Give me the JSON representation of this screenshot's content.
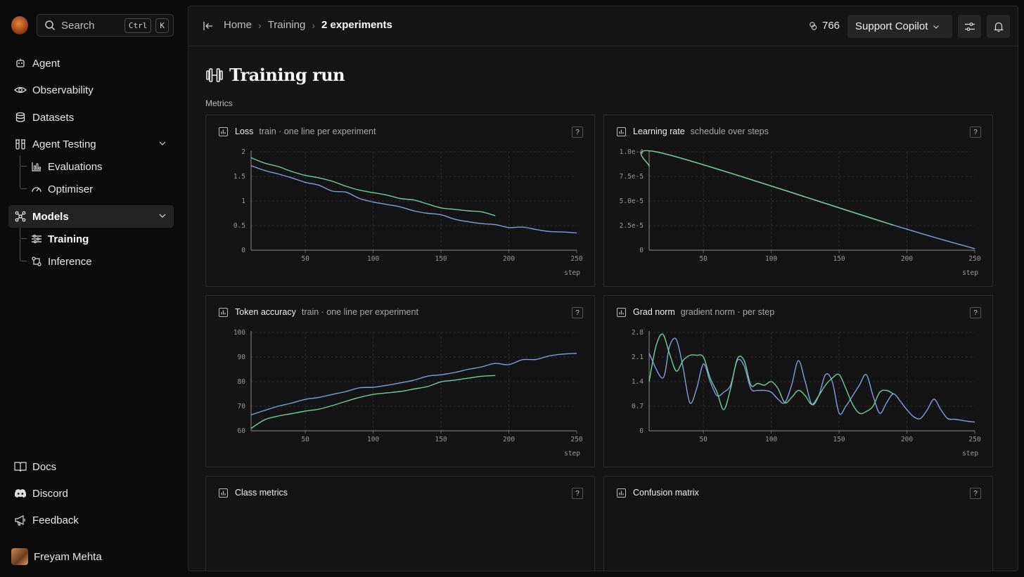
{
  "sidebar": {
    "search": {
      "placeholder": "Search",
      "shortcut_keys": [
        "Ctrl",
        "K"
      ]
    },
    "nav": [
      {
        "label": "Agent",
        "icon": "bot-icon"
      },
      {
        "label": "Observability",
        "icon": "eye-icon"
      },
      {
        "label": "Datasets",
        "icon": "database-icon"
      },
      {
        "label": "Agent Testing",
        "icon": "flask-icon",
        "expanded": true,
        "children": [
          {
            "label": "Evaluations",
            "icon": "chart-icon"
          },
          {
            "label": "Optimiser",
            "icon": "gauge-icon"
          }
        ]
      },
      {
        "label": "Models",
        "icon": "models-icon",
        "expanded": true,
        "active": true,
        "children": [
          {
            "label": "Training",
            "icon": "sliders-icon",
            "active": true
          },
          {
            "label": "Inference",
            "icon": "inference-icon"
          }
        ]
      }
    ],
    "footer_links": [
      {
        "label": "Docs",
        "icon": "book-icon"
      },
      {
        "label": "Discord",
        "icon": "discord-icon"
      },
      {
        "label": "Feedback",
        "icon": "megaphone-icon"
      }
    ],
    "user": {
      "name": "Freyam Mehta"
    }
  },
  "topbar": {
    "breadcrumbs": [
      "Home",
      "Training",
      "2 experiments"
    ],
    "credits": "766",
    "copilot_label": "Support Copilot"
  },
  "page": {
    "title": "Training run",
    "section_label": "Metrics",
    "help_glyph": "?"
  },
  "colors": {
    "series_a": "#7f9fdc",
    "series_b": "#6fcf97",
    "background": "#151515"
  },
  "cards": {
    "loss": {
      "title": "Loss",
      "subtitle": "train · one line per experiment"
    },
    "lr": {
      "title": "Learning rate",
      "subtitle": "schedule over steps"
    },
    "acc": {
      "title": "Token accuracy",
      "subtitle": "train · one line per experiment"
    },
    "grad": {
      "title": "Grad norm",
      "subtitle": "gradient norm · per step"
    },
    "class_metrics": {
      "title": "Class metrics"
    },
    "confusion": {
      "title": "Confusion matrix"
    }
  },
  "chart_data": [
    {
      "id": "loss",
      "type": "line",
      "title": "Loss",
      "subtitle": "train · one line per experiment",
      "xlabel": "step",
      "ylabel": "",
      "xlim": [
        10,
        250
      ],
      "ylim": [
        0,
        2
      ],
      "xticks": [
        50,
        100,
        150,
        200,
        250
      ],
      "yticks": [
        0,
        0.5,
        1,
        1.5,
        2
      ],
      "ytick_labels": [
        "0",
        "0.5",
        "1",
        "1.5",
        "2"
      ],
      "grid": true,
      "series": [
        {
          "color": "#7f9fdc",
          "x": [
            10,
            20,
            30,
            40,
            50,
            60,
            70,
            80,
            90,
            100,
            110,
            120,
            130,
            140,
            150,
            160,
            170,
            180,
            190,
            200,
            210,
            220,
            230,
            240,
            250
          ],
          "y": [
            1.72,
            1.62,
            1.55,
            1.47,
            1.38,
            1.32,
            1.2,
            1.18,
            1.05,
            0.98,
            0.93,
            0.88,
            0.8,
            0.75,
            0.72,
            0.63,
            0.58,
            0.54,
            0.52,
            0.46,
            0.47,
            0.42,
            0.38,
            0.37,
            0.35
          ]
        },
        {
          "color": "#6fcf97",
          "x": [
            10,
            20,
            30,
            40,
            50,
            60,
            70,
            80,
            90,
            100,
            110,
            120,
            130,
            140,
            150,
            160,
            170,
            180,
            190
          ],
          "y": [
            1.88,
            1.77,
            1.7,
            1.6,
            1.52,
            1.47,
            1.4,
            1.3,
            1.22,
            1.17,
            1.12,
            1.05,
            1.02,
            0.94,
            0.86,
            0.83,
            0.8,
            0.78,
            0.7
          ]
        }
      ]
    },
    {
      "id": "lr",
      "type": "line",
      "title": "Learning rate",
      "subtitle": "schedule over steps",
      "xlabel": "step",
      "ylabel": "",
      "xlim": [
        10,
        250
      ],
      "ylim": [
        0,
        0.0001
      ],
      "xticks": [
        50,
        100,
        150,
        200,
        250
      ],
      "yticks": [
        0,
        2.5e-05,
        5e-05,
        7.5e-05,
        0.0001
      ],
      "ytick_labels": [
        "0",
        "2.5e-5",
        "5.0e-5",
        "7.5e-5",
        "1.0e-4"
      ],
      "grid": true,
      "series": [
        {
          "color": "#7f9fdc",
          "x": [
            10,
            20,
            190,
            250
          ],
          "y": [
            8.5e-05,
            9.85e-05,
            2.55e-05,
            1.5e-06
          ]
        },
        {
          "color": "#6fcf97",
          "x": [
            10,
            20,
            190
          ],
          "y": [
            8.5e-05,
            9.85e-05,
            2.55e-05
          ]
        }
      ]
    },
    {
      "id": "acc",
      "type": "line",
      "title": "Token accuracy",
      "subtitle": "train · one line per experiment",
      "xlabel": "step",
      "ylabel": "",
      "xlim": [
        10,
        250
      ],
      "ylim": [
        60,
        100
      ],
      "xticks": [
        50,
        100,
        150,
        200,
        250
      ],
      "yticks": [
        60,
        70,
        80,
        90,
        100
      ],
      "ytick_labels": [
        "60",
        "70",
        "80",
        "90",
        "100"
      ],
      "grid": true,
      "series": [
        {
          "color": "#7f9fdc",
          "x": [
            10,
            20,
            30,
            40,
            50,
            60,
            70,
            80,
            90,
            100,
            110,
            120,
            130,
            140,
            150,
            160,
            170,
            180,
            190,
            200,
            210,
            220,
            230,
            240,
            250
          ],
          "y": [
            66.5,
            68.3,
            70,
            71.3,
            72.8,
            73.6,
            74.8,
            76,
            77.5,
            77.7,
            78.5,
            79.5,
            80.6,
            82.2,
            82.8,
            83.7,
            85,
            86,
            87.4,
            86.9,
            88.9,
            89,
            90.5,
            91.2,
            91.5
          ]
        },
        {
          "color": "#6fcf97",
          "x": [
            10,
            20,
            30,
            40,
            50,
            60,
            70,
            80,
            90,
            100,
            110,
            120,
            130,
            140,
            150,
            160,
            170,
            180,
            190
          ],
          "y": [
            61,
            64.5,
            66,
            67,
            68,
            68.8,
            70.3,
            72,
            73.6,
            74.8,
            75.4,
            76,
            77,
            78,
            79.9,
            80.6,
            81.4,
            82.2,
            82.5
          ]
        }
      ]
    },
    {
      "id": "grad",
      "type": "line",
      "title": "Grad norm",
      "subtitle": "gradient norm · per step",
      "xlabel": "step",
      "ylabel": "",
      "xlim": [
        10,
        250
      ],
      "ylim": [
        0,
        2.8
      ],
      "xticks": [
        50,
        100,
        150,
        200,
        250
      ],
      "yticks": [
        0,
        0.7,
        1.4,
        2.1,
        2.8
      ],
      "ytick_labels": [
        "0",
        "0.7",
        "1.4",
        "2.1",
        "2.8"
      ],
      "grid": true,
      "series": [
        {
          "color": "#7f9fdc",
          "x": [
            10,
            20,
            25,
            30,
            35,
            40,
            45,
            50,
            55,
            60,
            65,
            70,
            75,
            80,
            85,
            90,
            95,
            100,
            105,
            110,
            115,
            120,
            125,
            130,
            135,
            140,
            145,
            150,
            155,
            160,
            165,
            170,
            175,
            180,
            185,
            190,
            195,
            200,
            205,
            210,
            215,
            220,
            225,
            230,
            235,
            240,
            245,
            250
          ],
          "y": [
            2.2,
            1.5,
            2.4,
            2.6,
            1.8,
            0.8,
            1.2,
            1.9,
            1.4,
            1.0,
            1.1,
            1.3,
            2.0,
            1.85,
            1.2,
            1.15,
            1.15,
            1.1,
            0.9,
            0.8,
            1.3,
            2.0,
            1.4,
            0.75,
            1.0,
            1.6,
            1.4,
            0.5,
            0.7,
            1.0,
            1.3,
            1.6,
            1.0,
            0.5,
            0.8,
            1.05,
            0.85,
            0.6,
            0.4,
            0.35,
            0.6,
            0.9,
            0.6,
            0.35,
            0.33,
            0.3,
            0.27,
            0.25
          ]
        },
        {
          "color": "#6fcf97",
          "x": [
            10,
            15,
            20,
            25,
            30,
            35,
            40,
            45,
            50,
            55,
            60,
            65,
            70,
            75,
            80,
            85,
            90,
            95,
            100,
            105,
            110,
            115,
            120,
            125,
            130,
            135,
            140,
            145,
            150,
            155,
            160,
            165,
            170,
            175,
            180,
            185,
            190
          ],
          "y": [
            1.4,
            2.4,
            2.75,
            2.2,
            1.7,
            2.0,
            2.15,
            2.15,
            2.1,
            1.5,
            1.1,
            0.6,
            1.2,
            2.05,
            2.0,
            1.3,
            1.35,
            1.3,
            1.4,
            1.2,
            0.8,
            0.95,
            1.15,
            1.0,
            0.75,
            1.0,
            1.3,
            1.5,
            1.6,
            1.2,
            0.75,
            0.5,
            0.55,
            0.7,
            1.1,
            1.15,
            1.05
          ]
        }
      ]
    }
  ]
}
